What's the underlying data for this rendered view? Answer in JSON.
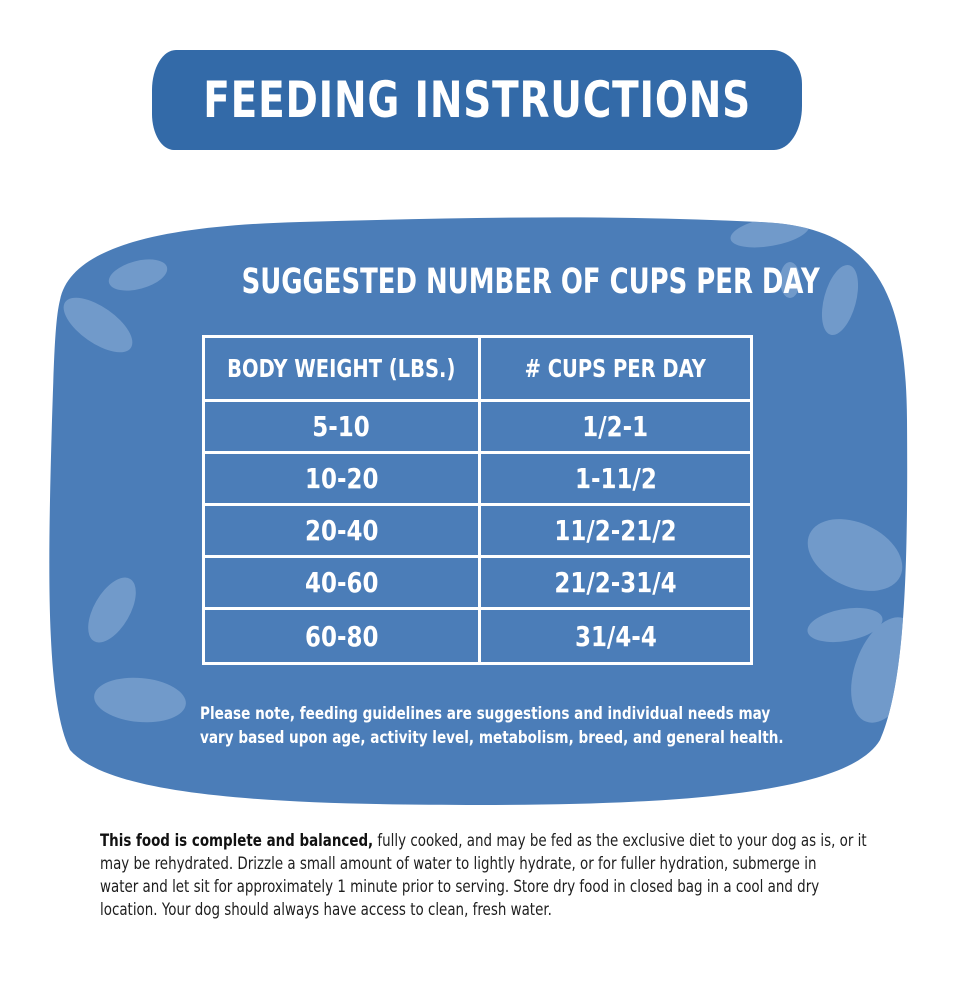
{
  "title": "FEEDING INSTRUCTIONS",
  "card": {
    "heading": "SUGGESTED NUMBER OF CUPS PER DAY",
    "table": {
      "headers": [
        "BODY WEIGHT (LBS.)",
        "# CUPS PER DAY"
      ],
      "rows": [
        [
          "5-10",
          "1/2-1"
        ],
        [
          "10-20",
          "1-11/2"
        ],
        [
          "20-40",
          "11/2-21/2"
        ],
        [
          "40-60",
          "21/2-31/4"
        ],
        [
          "60-80",
          "31/4-4"
        ]
      ]
    },
    "note_lines": [
      "Please note, feeding guidelines are suggestions and individual needs may",
      "vary based upon age, activity level, metabolism, breed, and general health."
    ]
  },
  "footer": {
    "bold_lead": "This food is complete and balanced,",
    "line1_rest": " fully cooked, and may be fed as the exclusive diet to your dog as is, or it",
    "lines": [
      "may be rehydrated. Drizzle a small amount of water to lightly hydrate, or for fuller hydration, submerge in",
      "water and let sit for approximately 1 minute prior to serving. Store dry food in closed bag in a cool and dry",
      "location. Your dog should always have access to clean, fresh water."
    ]
  },
  "colors": {
    "banner": "#336aa8",
    "card": "#4b7db8",
    "card_spots": "#7ea4d0",
    "text_light": "#ffffff",
    "text_dark": "#1e1e1e"
  }
}
